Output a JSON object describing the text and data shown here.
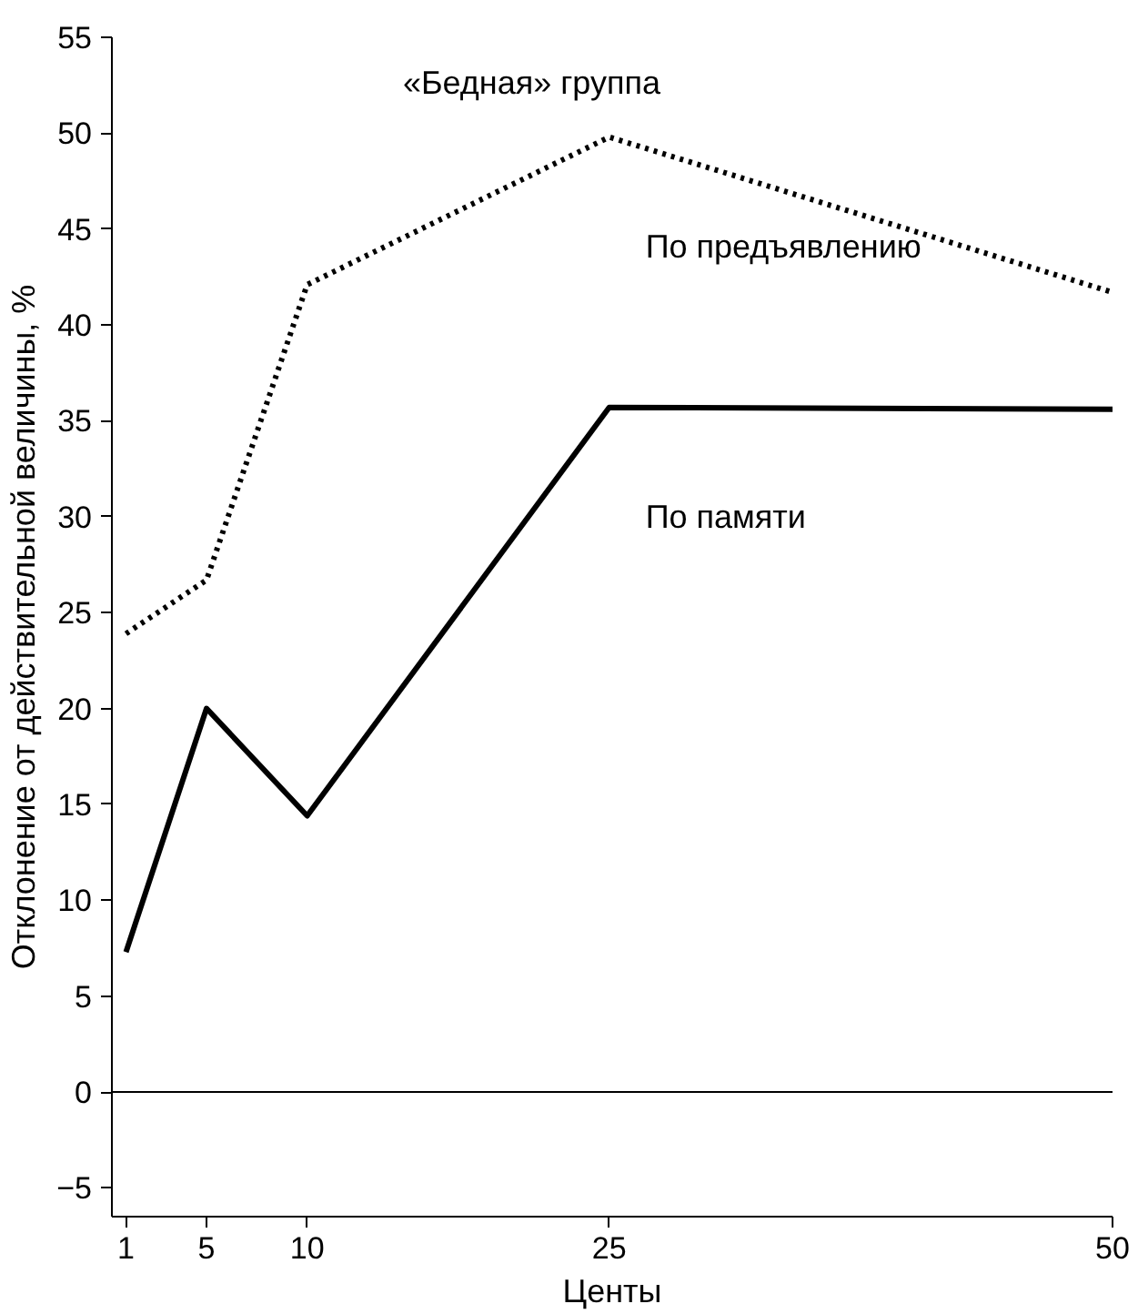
{
  "chart_data": {
    "type": "line",
    "title": "«Бедная» группа",
    "xlabel": "Центы",
    "ylabel": "Отклонение от действительной величины, %",
    "x": [
      1,
      5,
      10,
      25,
      50
    ],
    "series": [
      {
        "name": "По предъявлению",
        "color": "#000000",
        "line_style": "dotted",
        "values": [
          23.9,
          26.7,
          42.1,
          49.8,
          41.7
        ]
      },
      {
        "name": "По памяти",
        "color": "#000000",
        "line_style": "solid",
        "values": [
          7.3,
          20.0,
          14.4,
          35.7,
          35.6
        ]
      }
    ],
    "xlim": [
      0.3,
      50
    ],
    "xticks": [
      1,
      5,
      10,
      25,
      50
    ],
    "ylim": [
      -6.5,
      55
    ],
    "yticks": [
      -5,
      0,
      5,
      10,
      15,
      20,
      25,
      30,
      35,
      40,
      45,
      50,
      55
    ],
    "ref_lines": [
      {
        "axis": "y",
        "value": 0,
        "color": "#000000",
        "line_style": "solid"
      }
    ],
    "grid": false,
    "marker": "none"
  }
}
